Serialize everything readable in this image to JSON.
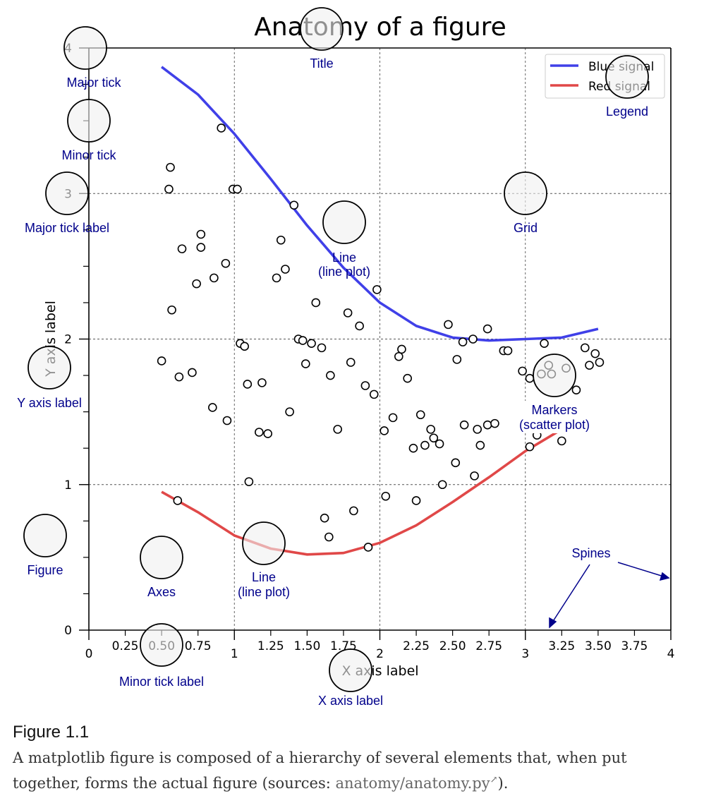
{
  "chart_data": {
    "type": "line",
    "title": "Anatomy of a figure",
    "xlabel": "X axis label",
    "ylabel": "Y axis label",
    "xlim": [
      0,
      4
    ],
    "ylim": [
      0,
      4
    ],
    "major_xticks": [
      0,
      1,
      2,
      3,
      4
    ],
    "major_xtick_labels": [
      "0",
      "1",
      "2",
      "3",
      "4"
    ],
    "minor_xticks": [
      0.25,
      0.5,
      0.75,
      1.25,
      1.5,
      1.75,
      2.25,
      2.5,
      2.75,
      3.25,
      3.5,
      3.75
    ],
    "minor_xtick_labels": [
      "0.25",
      "0.50",
      "0.75",
      "1.25",
      "1.50",
      "1.75",
      "2.25",
      "2.50",
      "2.75",
      "3.25",
      "3.50",
      "3.75"
    ],
    "major_yticks": [
      0,
      1,
      2,
      3,
      4
    ],
    "major_ytick_labels": [
      "0",
      "1",
      "2",
      "3",
      "4"
    ],
    "minor_yticks": [
      0.25,
      0.5,
      0.75,
      1.25,
      1.5,
      1.75,
      2.25,
      2.5,
      2.75,
      3.25,
      3.5,
      3.75
    ],
    "grid": true,
    "legend_position": "top-right",
    "series": [
      {
        "name": "Blue signal",
        "color": "#4040e8",
        "kind": "line",
        "x": [
          0.5,
          0.75,
          1.0,
          1.25,
          1.5,
          1.75,
          2.0,
          2.25,
          2.5,
          2.75,
          3.0,
          3.25,
          3.5
        ],
        "y": [
          3.87,
          3.68,
          3.41,
          3.1,
          2.78,
          2.49,
          2.25,
          2.09,
          2.01,
          1.99,
          2.0,
          2.01,
          2.07
        ]
      },
      {
        "name": "Red signal",
        "color": "#e04848",
        "kind": "line",
        "x": [
          0.5,
          0.75,
          1.0,
          1.25,
          1.5,
          1.75,
          2.0,
          2.25,
          2.5,
          2.75,
          3.0,
          3.25,
          3.5
        ],
        "y": [
          0.95,
          0.81,
          0.65,
          0.56,
          0.52,
          0.53,
          0.6,
          0.72,
          0.88,
          1.05,
          1.23,
          1.38,
          1.48
        ]
      },
      {
        "kind": "scatter",
        "color": "#000000",
        "points": [
          [
            0.91,
            3.45
          ],
          [
            0.56,
            3.18
          ],
          [
            0.55,
            3.03
          ],
          [
            0.99,
            3.03
          ],
          [
            1.02,
            3.03
          ],
          [
            1.41,
            2.92
          ],
          [
            0.77,
            2.72
          ],
          [
            0.64,
            2.62
          ],
          [
            0.77,
            2.63
          ],
          [
            1.32,
            2.68
          ],
          [
            0.94,
            2.52
          ],
          [
            1.29,
            2.42
          ],
          [
            1.35,
            2.48
          ],
          [
            0.74,
            2.38
          ],
          [
            0.86,
            2.42
          ],
          [
            0.57,
            2.2
          ],
          [
            1.56,
            2.25
          ],
          [
            1.78,
            2.18
          ],
          [
            1.86,
            2.09
          ],
          [
            1.98,
            2.34
          ],
          [
            2.47,
            2.1
          ],
          [
            2.57,
            1.98
          ],
          [
            2.64,
            2.0
          ],
          [
            2.74,
            2.07
          ],
          [
            0.5,
            1.85
          ],
          [
            0.62,
            1.74
          ],
          [
            0.71,
            1.77
          ],
          [
            1.04,
            1.97
          ],
          [
            1.07,
            1.95
          ],
          [
            1.09,
            1.69
          ],
          [
            1.19,
            1.7
          ],
          [
            1.44,
            2.0
          ],
          [
            1.47,
            1.99
          ],
          [
            1.53,
            1.97
          ],
          [
            1.6,
            1.94
          ],
          [
            1.49,
            1.83
          ],
          [
            1.66,
            1.75
          ],
          [
            1.8,
            1.84
          ],
          [
            1.9,
            1.68
          ],
          [
            1.96,
            1.62
          ],
          [
            2.13,
            1.88
          ],
          [
            2.15,
            1.93
          ],
          [
            2.19,
            1.73
          ],
          [
            2.53,
            1.86
          ],
          [
            2.85,
            1.92
          ],
          [
            2.88,
            1.92
          ],
          [
            2.98,
            1.78
          ],
          [
            3.03,
            1.73
          ],
          [
            3.11,
            1.76
          ],
          [
            3.13,
            1.97
          ],
          [
            3.16,
            1.82
          ],
          [
            3.18,
            1.76
          ],
          [
            3.28,
            1.8
          ],
          [
            3.35,
            1.65
          ],
          [
            3.41,
            1.94
          ],
          [
            3.44,
            1.82
          ],
          [
            3.48,
            1.9
          ],
          [
            3.51,
            1.84
          ],
          [
            0.85,
            1.53
          ],
          [
            0.95,
            1.44
          ],
          [
            1.17,
            1.36
          ],
          [
            1.23,
            1.35
          ],
          [
            1.38,
            1.5
          ],
          [
            1.71,
            1.38
          ],
          [
            2.03,
            1.37
          ],
          [
            2.09,
            1.46
          ],
          [
            2.28,
            1.48
          ],
          [
            2.31,
            1.27
          ],
          [
            2.35,
            1.38
          ],
          [
            2.37,
            1.32
          ],
          [
            2.41,
            1.28
          ],
          [
            2.23,
            1.25
          ],
          [
            2.52,
            1.15
          ],
          [
            2.58,
            1.41
          ],
          [
            2.67,
            1.38
          ],
          [
            2.69,
            1.27
          ],
          [
            2.74,
            1.41
          ],
          [
            2.79,
            1.42
          ],
          [
            3.03,
            1.26
          ],
          [
            3.08,
            1.34
          ],
          [
            3.25,
            1.3
          ],
          [
            1.1,
            1.02
          ],
          [
            0.61,
            0.89
          ],
          [
            1.62,
            0.77
          ],
          [
            1.65,
            0.64
          ],
          [
            1.82,
            0.82
          ],
          [
            1.92,
            0.57
          ],
          [
            2.04,
            0.92
          ],
          [
            2.25,
            0.89
          ],
          [
            2.43,
            1.0
          ],
          [
            2.65,
            1.06
          ]
        ]
      }
    ]
  },
  "annotations": {
    "major_tick": "Major tick",
    "minor_tick": "Minor tick",
    "major_tick_label": "Major tick label",
    "y_axis_label": "Y axis label",
    "figure": "Figure",
    "axes": "Axes",
    "line_blue_1": "Line",
    "line_blue_2": "(line plot)",
    "line_red_1": "Line",
    "line_red_2": "(line plot)",
    "title": "Title",
    "legend": "Legend",
    "grid": "Grid",
    "markers_1": "Markers",
    "markers_2": "(scatter plot)",
    "spines": "Spines",
    "minor_tick_label": "Minor tick label",
    "x_axis_label": "X axis label"
  },
  "colors": {
    "annotation": "#00008b",
    "blue": "#4040e8",
    "red": "#e04848"
  },
  "caption": {
    "title": "Figure 1.1",
    "text": "A matplotlib figure is composed of a hierarchy of several elements that, when put together, forms the actual figure (sources: ",
    "link": "anatomy/anatomy.py",
    "suffix": ")."
  }
}
